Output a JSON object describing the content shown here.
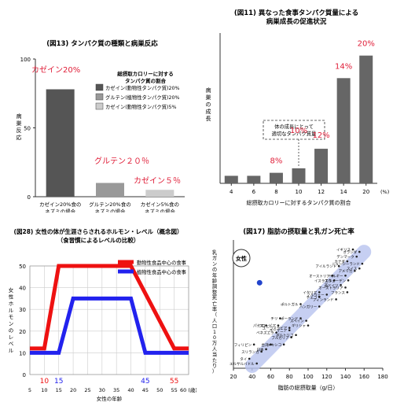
{
  "chart_data": [
    {
      "id": "fig13",
      "type": "bar",
      "title": "(図13) タンパク質の種類と病巣反応",
      "ylabel": "病巣反応",
      "ylim": [
        0,
        100
      ],
      "yticks": [
        0,
        50,
        100
      ],
      "legend_title": "総摂取カロリーに対する\nタンパク質の割合",
      "legend": [
        {
          "label": "カゼイン(動物性タンパク質)20%",
          "color": "#555555"
        },
        {
          "label": "グルテン(植物性タンパク質)20%",
          "color": "#999999"
        },
        {
          "label": "カゼイン(動物性タンパク質)5%",
          "color": "#cccccc"
        }
      ],
      "categories": [
        "カゼイン20%食の\nネズミの場合",
        "グルテン20%食の\nネズミの場合",
        "カゼイン5%食の\nネズミの場合"
      ],
      "values": [
        78,
        10,
        5
      ],
      "colors": [
        "#555555",
        "#999999",
        "#cccccc"
      ],
      "annotations": [
        "カゼイン20%",
        "グルテン２０％",
        "カゼイン５％"
      ]
    },
    {
      "id": "fig11",
      "type": "bar",
      "title": "(図11) 異なった食事タンパク質量による\n病巣成長の促進状況",
      "ylabel": "病巣の成長",
      "xlabel": "総摂取カロリーに対するタンパク質の割合",
      "xunit": "(%)",
      "categories": [
        "4",
        "6",
        "8",
        "10",
        "12",
        "14",
        "20"
      ],
      "values": [
        5,
        5,
        7,
        10,
        23,
        70,
        85
      ],
      "ylim": [
        0,
        100
      ],
      "color": "#666666",
      "highlight_category": "10",
      "callout": "体の成長にとって\n適切なタンパク質量",
      "annotations": [
        {
          "category": "8",
          "text": "8%"
        },
        {
          "category": "10",
          "text": "10%"
        },
        {
          "category": "12",
          "text": "12%"
        },
        {
          "category": "14",
          "text": "14%"
        },
        {
          "category": "20",
          "text": "20%"
        }
      ]
    },
    {
      "id": "fig28",
      "type": "line",
      "title": "(図28) 女性の体が生涯さらされるホルモン・レベル（概念図）\n（食習慣によるレベルの比較）",
      "ylabel": "女性ホルモンのレベル",
      "xlabel": "女性の年齢",
      "xticks": [
        "5",
        "10",
        "15",
        "20",
        "25",
        "30",
        "35",
        "40",
        "45",
        "50",
        "55",
        "60 (歳)"
      ],
      "xlim": [
        5,
        60
      ],
      "ylim": [
        0,
        50
      ],
      "yticks": [
        0,
        10,
        20,
        30,
        40,
        50
      ],
      "series": [
        {
          "name": "動物性食品中心の食事",
          "color": "#ee1111",
          "x": [
            5,
            10,
            15,
            40,
            55,
            60
          ],
          "y": [
            12,
            12,
            50,
            50,
            12,
            12
          ]
        },
        {
          "name": "植物性食品中心の食事",
          "color": "#2222ee",
          "x": [
            5,
            15,
            20,
            40,
            45,
            60
          ],
          "y": [
            10,
            10,
            35,
            35,
            10,
            10
          ]
        }
      ],
      "age_labels": [
        {
          "x": 10,
          "text": "10",
          "color": "#ee1111"
        },
        {
          "x": 15,
          "text": "15",
          "color": "#2222ee"
        },
        {
          "x": 45,
          "text": "45",
          "color": "#2222ee"
        },
        {
          "x": 55,
          "text": "55",
          "color": "#ee1111"
        }
      ]
    },
    {
      "id": "fig17",
      "type": "scatter",
      "title": "(図17) 脂肪の摂取量と乳ガン死亡率",
      "xlabel": "脂肪の総摂取量（g/日）",
      "ylabel": "乳ガンの年齢調整死亡率（人口10万人当たり）",
      "xticks": [
        20,
        40,
        60,
        80,
        100,
        120,
        140,
        160,
        180
      ],
      "xlim": [
        20,
        180
      ],
      "ylim": [
        0,
        27
      ],
      "legend": "女性",
      "highlight_point": {
        "x": 48,
        "y": 18,
        "color": "#2244cc"
      },
      "points": [
        {
          "name": "イギリス",
          "x": 148,
          "y": 25
        },
        {
          "name": "オランダ",
          "x": 155,
          "y": 24.5
        },
        {
          "name": "デンマーク",
          "x": 152,
          "y": 23.5
        },
        {
          "name": "カナダ",
          "x": 142,
          "y": 22.5
        },
        {
          "name": "ニュージーランド",
          "x": 158,
          "y": 22
        },
        {
          "name": "アイルランド",
          "x": 133,
          "y": 21.5
        },
        {
          "name": "スイス",
          "x": 155,
          "y": 21
        },
        {
          "name": "アメリカ",
          "x": 150,
          "y": 20.5
        },
        {
          "name": "オーストリア",
          "x": 126,
          "y": 19.5
        },
        {
          "name": "ベルギー",
          "x": 140,
          "y": 19.5
        },
        {
          "name": "イスラエル",
          "x": 128,
          "y": 18.5
        },
        {
          "name": "スウェーデン",
          "x": 143,
          "y": 18.5
        },
        {
          "name": "西ドイツ",
          "x": 135,
          "y": 17.5
        },
        {
          "name": "オーストラリア",
          "x": 140,
          "y": 17
        },
        {
          "name": "フランス",
          "x": 142,
          "y": 16
        },
        {
          "name": "イタリア",
          "x": 112,
          "y": 16
        },
        {
          "name": "ノルウェー",
          "x": 120,
          "y": 15.5
        },
        {
          "name": "チェコ",
          "x": 112,
          "y": 15
        },
        {
          "name": "フィンランド",
          "x": 130,
          "y": 14.5
        },
        {
          "name": "ポルトガル",
          "x": 92,
          "y": 13.5
        },
        {
          "name": "ハンガリー",
          "x": 112,
          "y": 13
        },
        {
          "name": "チリ",
          "x": 70,
          "y": 10.5
        },
        {
          "name": "ポーランド",
          "x": 92,
          "y": 10.5
        },
        {
          "name": "スペイン",
          "x": 98,
          "y": 10
        },
        {
          "name": "パナマ",
          "x": 55,
          "y": 9
        },
        {
          "name": "コロンビア",
          "x": 68,
          "y": 9
        },
        {
          "name": "ギリシャ",
          "x": 100,
          "y": 9
        },
        {
          "name": "ユーゴスラビア",
          "x": 80,
          "y": 8.5
        },
        {
          "name": "ルーマニア",
          "x": 80,
          "y": 8
        },
        {
          "name": "ベネズエラ",
          "x": 66,
          "y": 7.5
        },
        {
          "name": "ポルトリコ",
          "x": 87,
          "y": 7
        },
        {
          "name": "ブルガリア",
          "x": 82,
          "y": 6.5
        },
        {
          "name": "フィリピン",
          "x": 42,
          "y": 5
        },
        {
          "name": "台湾",
          "x": 60,
          "y": 5
        },
        {
          "name": "メキシコ",
          "x": 74,
          "y": 5
        },
        {
          "name": "日本",
          "x": 55,
          "y": 4
        },
        {
          "name": "スリランカ",
          "x": 50,
          "y": 3.5
        },
        {
          "name": "タイ",
          "x": 37,
          "y": 2
        },
        {
          "name": "エルサルバドル",
          "x": 45,
          "y": 1
        }
      ]
    }
  ]
}
